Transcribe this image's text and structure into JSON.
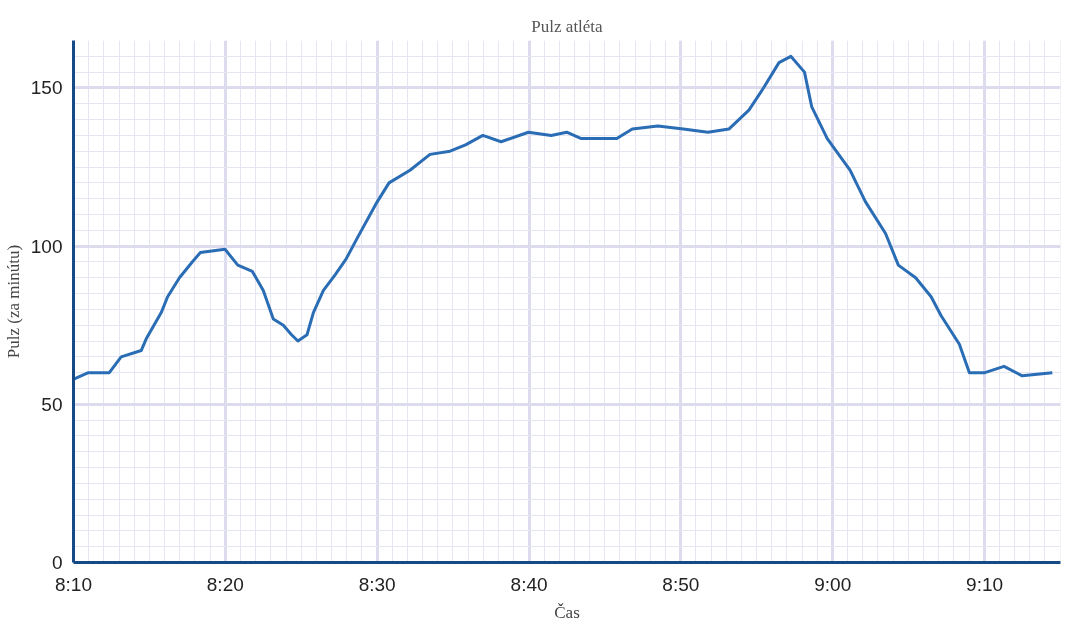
{
  "chart_data": {
    "type": "line",
    "title": "Pulz atléta",
    "xlabel": "Čas",
    "ylabel": "Pulz (za minútu)",
    "x": [
      8.167,
      8.183,
      8.206,
      8.219,
      8.241,
      8.247,
      8.263,
      8.27,
      8.283,
      8.297,
      8.306,
      8.333,
      8.347,
      8.363,
      8.375,
      8.386,
      8.397,
      8.406,
      8.413,
      8.423,
      8.43,
      8.441,
      8.454,
      8.466,
      8.479,
      8.5,
      8.513,
      8.536,
      8.558,
      8.58,
      8.597,
      8.616,
      8.636,
      8.666,
      8.691,
      8.708,
      8.724,
      8.763,
      8.78,
      8.808,
      8.836,
      8.863,
      8.886,
      8.908,
      8.924,
      8.941,
      8.954,
      8.969,
      8.977,
      8.994,
      9.019,
      9.036,
      9.058,
      9.072,
      9.091,
      9.108,
      9.119,
      9.139,
      9.15,
      9.167,
      9.188,
      9.208,
      9.241
    ],
    "series": [
      {
        "color": "#2a6db5",
        "values": [
          58,
          60,
          60,
          65,
          67,
          71,
          79,
          84,
          90,
          95,
          98,
          99,
          94,
          92,
          86,
          77,
          75,
          72,
          70,
          72,
          79,
          86,
          91,
          96,
          103,
          114,
          120,
          124,
          129,
          130,
          132,
          135,
          133,
          136,
          135,
          136,
          134,
          134,
          137,
          138,
          137,
          136,
          137,
          143,
          150,
          158,
          160,
          155,
          144,
          134,
          124,
          114,
          104,
          94,
          90,
          84,
          78,
          69,
          60,
          60,
          62,
          59,
          60
        ]
      }
    ],
    "xlim": [
      8.1667,
      9.25
    ],
    "xticks": [
      {
        "value": 8.1667,
        "label": "8:10"
      },
      {
        "value": 8.3333,
        "label": "8:20"
      },
      {
        "value": 8.5,
        "label": "8:30"
      },
      {
        "value": 8.6667,
        "label": "8:40"
      },
      {
        "value": 8.8333,
        "label": "8:50"
      },
      {
        "value": 9,
        "label": "9:00"
      },
      {
        "value": 9.1667,
        "label": "9:10"
      }
    ],
    "ylim": [
      0,
      165
    ],
    "yticks": [
      0,
      50,
      100,
      150
    ],
    "grid": true,
    "marker": "none",
    "line_style": "solid"
  }
}
